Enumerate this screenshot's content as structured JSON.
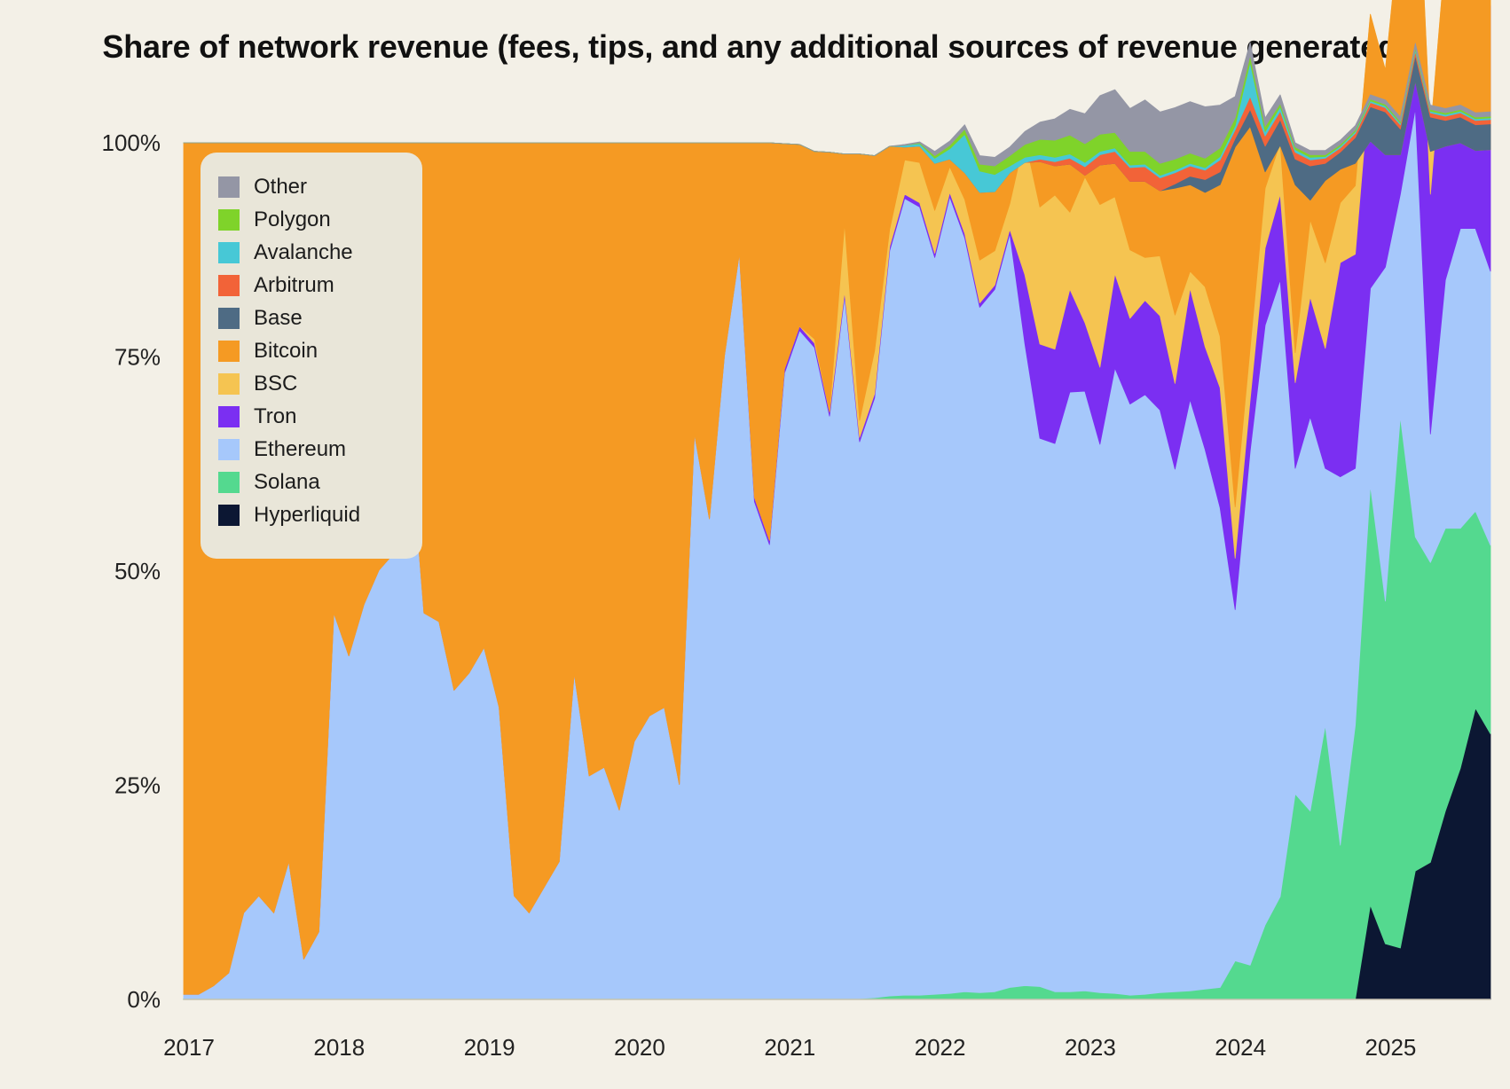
{
  "chart_data": {
    "type": "area",
    "stacked": true,
    "normalized": true,
    "title": "Share of network revenue (fees, tips, and any additional sources of revenue generated)",
    "xlabel": "",
    "ylabel": "",
    "xlim": [
      2017.0,
      2025.7
    ],
    "ylim": [
      0,
      100
    ],
    "x_ticks": [
      "2017",
      "2018",
      "2019",
      "2020",
      "2021",
      "2022",
      "2023",
      "2024",
      "2025"
    ],
    "y_ticks": [
      "0%",
      "25%",
      "50%",
      "75%",
      "100%"
    ],
    "y_tick_values": [
      0,
      25,
      50,
      75,
      100
    ],
    "legend_position": "top-left",
    "x": [
      2017.0,
      2017.1,
      2017.2,
      2017.3,
      2017.4,
      2017.5,
      2017.6,
      2017.7,
      2017.8,
      2017.9,
      2018.0,
      2018.1,
      2018.2,
      2018.3,
      2018.4,
      2018.5,
      2018.6,
      2018.7,
      2018.8,
      2018.9,
      2019.0,
      2019.1,
      2019.2,
      2019.3,
      2019.4,
      2019.5,
      2019.6,
      2019.7,
      2019.8,
      2019.9,
      2020.0,
      2020.1,
      2020.2,
      2020.3,
      2020.4,
      2020.5,
      2020.6,
      2020.7,
      2020.8,
      2020.9,
      2021.0,
      2021.1,
      2021.2,
      2021.3,
      2021.4,
      2021.5,
      2021.6,
      2021.7,
      2021.8,
      2021.9,
      2022.0,
      2022.1,
      2022.2,
      2022.3,
      2022.4,
      2022.5,
      2022.6,
      2022.7,
      2022.8,
      2022.9,
      2023.0,
      2023.1,
      2023.2,
      2023.3,
      2023.4,
      2023.5,
      2023.6,
      2023.7,
      2023.8,
      2023.9,
      2024.0,
      2024.1,
      2024.2,
      2024.3,
      2024.4,
      2024.5,
      2024.6,
      2024.7,
      2024.8,
      2024.9,
      2025.0,
      2025.1,
      2025.2,
      2025.3,
      2025.4,
      2025.5,
      2025.6,
      2025.7
    ],
    "series": [
      {
        "name": "Hyperliquid",
        "color": "#0c1733",
        "values": [
          0,
          0,
          0,
          0,
          0,
          0,
          0,
          0,
          0,
          0,
          0,
          0,
          0,
          0,
          0,
          0,
          0,
          0,
          0,
          0,
          0,
          0,
          0,
          0,
          0,
          0,
          0,
          0,
          0,
          0,
          0,
          0,
          0,
          0,
          0,
          0,
          0,
          0,
          0,
          0,
          0,
          0,
          0,
          0,
          0,
          0,
          0,
          0,
          0,
          0,
          0,
          0,
          0,
          0,
          0,
          0,
          0,
          0,
          0,
          0,
          0,
          0,
          0,
          0,
          0,
          0,
          0,
          0,
          0,
          0,
          0,
          0,
          0,
          0,
          0,
          0,
          0,
          0,
          0,
          11,
          6.5,
          6,
          15,
          16,
          22,
          27,
          34,
          31
        ]
      },
      {
        "name": "Solana",
        "color": "#54d98f",
        "values": [
          0.1,
          0.1,
          0.1,
          0.1,
          0.1,
          0.1,
          0.1,
          0.1,
          0.1,
          0.1,
          0.1,
          0.1,
          0.1,
          0.1,
          0.1,
          0.1,
          0.1,
          0.1,
          0.1,
          0.1,
          0.1,
          0.1,
          0.1,
          0.1,
          0.1,
          0.1,
          0.1,
          0.1,
          0.1,
          0.1,
          0.1,
          0.1,
          0.1,
          0.1,
          0.1,
          0.1,
          0.1,
          0.1,
          0.1,
          0.1,
          0.1,
          0.1,
          0.1,
          0.1,
          0.1,
          0.1,
          0.2,
          0.4,
          0.5,
          0.5,
          0.6,
          0.7,
          0.9,
          0.8,
          0.9,
          1.4,
          1.6,
          1.5,
          0.9,
          0.9,
          1.0,
          0.8,
          0.7,
          0.5,
          0.6,
          0.8,
          0.9,
          1.0,
          1.2,
          1.4,
          4.5,
          4,
          8.7,
          12,
          24,
          22,
          32,
          18,
          32,
          49,
          40,
          62,
          39,
          35,
          33,
          28,
          23,
          22
        ]
      },
      {
        "name": "Ethereum",
        "color": "#a6c8fb",
        "values": [
          0.5,
          0.5,
          1.5,
          3,
          10,
          12,
          10,
          16,
          4.6,
          7.8,
          45,
          40,
          46,
          50,
          52,
          67,
          45,
          44,
          36,
          38,
          41,
          34,
          12,
          10,
          13,
          16,
          38,
          26,
          27,
          22,
          30,
          33,
          34,
          25,
          66,
          56,
          75,
          87,
          58,
          53,
          73,
          78,
          76,
          68,
          82,
          65,
          70,
          87,
          93,
          92,
          86,
          93,
          88,
          80,
          82,
          88,
          75,
          64,
          64,
          70,
          70,
          64,
          73,
          69,
          70,
          68,
          61,
          69,
          63,
          56,
          41,
          60,
          70,
          72,
          38,
          46,
          30,
          43,
          30,
          23,
          39,
          26,
          50,
          15,
          29,
          35,
          33,
          32
        ]
      },
      {
        "name": "Tron",
        "color": "#7b2ff2",
        "values": [
          0,
          0,
          0,
          0,
          0,
          0,
          0,
          0,
          0,
          0,
          0,
          0,
          0,
          0,
          0,
          0,
          0,
          0,
          0,
          0,
          0,
          0,
          0,
          0,
          0,
          0,
          0,
          0,
          0,
          0,
          0,
          0,
          0,
          0,
          0,
          0,
          0,
          0,
          0.5,
          0.5,
          0.5,
          0.5,
          0.5,
          0.5,
          0.5,
          0.5,
          0.5,
          0.5,
          0.5,
          0.5,
          0.5,
          0.5,
          0.5,
          0.5,
          0.5,
          0.5,
          8,
          11,
          11,
          12,
          8,
          9,
          11,
          10,
          11,
          11,
          10,
          13,
          12,
          14,
          6,
          6,
          9,
          10,
          10,
          14,
          14,
          25,
          25,
          25,
          16,
          25,
          28,
          28,
          31,
          30,
          30,
          31
        ]
      },
      {
        "name": "BSC",
        "color": "#f5c451",
        "values": [
          0,
          0,
          0,
          0,
          0,
          0,
          0,
          0,
          0,
          0,
          0,
          0,
          0,
          0,
          0,
          0,
          0,
          0,
          0,
          0,
          0,
          0,
          0,
          0,
          0,
          0,
          0,
          0,
          0,
          0,
          0,
          0,
          0,
          0,
          0,
          0,
          0,
          0,
          0,
          0,
          0,
          0,
          0.5,
          0,
          8,
          2,
          5,
          2,
          4,
          4.7,
          5,
          3,
          4,
          5,
          4,
          3,
          16,
          16,
          18,
          9,
          17,
          19,
          9,
          8,
          5,
          7,
          8,
          2,
          7,
          6,
          6,
          6,
          7,
          6,
          3.5,
          9,
          10,
          7,
          8,
          7,
          7,
          7,
          7,
          7,
          7,
          7,
          7,
          7
        ]
      },
      {
        "name": "Bitcoin",
        "color": "#f59a23",
        "values": [
          99.4,
          99.4,
          98.4,
          96.9,
          89.9,
          87.9,
          89.9,
          83.9,
          95.3,
          92.1,
          54.9,
          59.9,
          53.9,
          49.9,
          47.9,
          32.9,
          54.9,
          55.9,
          63.9,
          61.9,
          58.9,
          65.9,
          87.9,
          89.9,
          86.9,
          83.9,
          61.9,
          73.9,
          72.9,
          77.9,
          69.9,
          66.9,
          65.9,
          74.9,
          33.9,
          43.9,
          24.9,
          12.9,
          41.4,
          46.4,
          26.3,
          21.2,
          21.9,
          30.3,
          8.1,
          31.1,
          22.8,
          9.7,
          1.5,
          1.9,
          5.5,
          0.9,
          3.1,
          7.9,
          6.9,
          3.6,
          -2.9,
          5.3,
          3.4,
          5.6,
          0.2,
          4.6,
          3.9,
          8.0,
          8.9,
          7.6,
          14.8,
          10.1,
          11.0,
          17.7,
          42.0,
          25.9,
          1.9,
          -0.3,
          19.6,
          2.3,
          9.6,
          3.9,
          2.6,
          -14.8,
          -9.9,
          -27.4,
          -31.8,
          -2.0,
          -22.4,
          -27.0,
          -27.9,
          -23.8
        ]
      },
      {
        "name": "Base",
        "color": "#4e6b84",
        "values": [
          0,
          0,
          0,
          0,
          0,
          0,
          0,
          0,
          0,
          0,
          0,
          0,
          0,
          0,
          0,
          0,
          0,
          0,
          0,
          0,
          0,
          0,
          0,
          0,
          0,
          0,
          0,
          0,
          0,
          0,
          0,
          0,
          0,
          0,
          0,
          0,
          0,
          0,
          0,
          0,
          0,
          0,
          0,
          0,
          0,
          0,
          0,
          0,
          0,
          0,
          0,
          0,
          0,
          0,
          0,
          0,
          0,
          0,
          0,
          0,
          0,
          0,
          0,
          0,
          0,
          0,
          0.5,
          1,
          1.5,
          1.5,
          1,
          2,
          3,
          3,
          3,
          4,
          2,
          2,
          3,
          4,
          5,
          3,
          3,
          4,
          3,
          3,
          3,
          3
        ]
      },
      {
        "name": "Arbitrum",
        "color": "#f26338",
        "values": [
          0,
          0,
          0,
          0,
          0,
          0,
          0,
          0,
          0,
          0,
          0,
          0,
          0,
          0,
          0,
          0,
          0,
          0,
          0,
          0,
          0,
          0,
          0,
          0,
          0,
          0,
          0,
          0,
          0,
          0,
          0,
          0,
          0,
          0,
          0,
          0,
          0,
          0,
          0,
          0,
          0,
          0,
          0,
          0,
          0,
          0,
          0,
          0,
          0,
          0,
          0,
          0,
          0,
          0,
          0,
          0,
          0,
          0.3,
          0.5,
          0.7,
          1,
          1.2,
          1.4,
          1.6,
          1.7,
          1.5,
          1.3,
          1.2,
          1.1,
          1.4,
          1,
          1.5,
          1.2,
          1,
          0.8,
          0.7,
          0.6,
          0.5,
          0.5,
          0.5,
          0.5,
          0.5,
          0.5,
          0.5,
          0.5,
          0.5,
          0.5,
          0.5
        ]
      },
      {
        "name": "Avalanche",
        "color": "#47c8d6",
        "values": [
          0,
          0,
          0,
          0,
          0,
          0,
          0,
          0,
          0,
          0,
          0,
          0,
          0,
          0,
          0,
          0,
          0,
          0,
          0,
          0,
          0,
          0,
          0,
          0,
          0,
          0,
          0,
          0,
          0,
          0,
          0,
          0,
          0,
          0,
          0,
          0,
          0,
          0,
          0,
          0,
          0,
          0,
          0,
          0,
          0,
          0,
          0,
          0,
          0.2,
          0.3,
          0.6,
          1.2,
          4.5,
          2.5,
          2,
          0.8,
          0.6,
          0.5,
          0.5,
          0.5,
          0.5,
          0.4,
          0.4,
          0.3,
          0.3,
          0.3,
          0.3,
          0.3,
          0.3,
          0.4,
          0.5,
          4,
          0.5,
          0.5,
          0.3,
          0.3,
          0.2,
          0.2,
          0.2,
          0.2,
          0.2,
          0.2,
          0.2,
          0.2,
          0.2,
          0.2,
          0.2,
          0.2
        ]
      },
      {
        "name": "Polygon",
        "color": "#7fd32a",
        "values": [
          0,
          0,
          0,
          0,
          0,
          0,
          0,
          0,
          0,
          0,
          0,
          0,
          0,
          0,
          0,
          0,
          0,
          0,
          0,
          0,
          0,
          0,
          0,
          0,
          0,
          0,
          0,
          0,
          0,
          0,
          0,
          0,
          0,
          0,
          0,
          0,
          0,
          0,
          0,
          0,
          0,
          0,
          0,
          0,
          0,
          0,
          0,
          0,
          0,
          0.1,
          0.3,
          0.4,
          0.6,
          0.8,
          1,
          1.2,
          1.5,
          1.8,
          2,
          2.2,
          2.2,
          2,
          1.8,
          1.6,
          1.5,
          1.4,
          1.3,
          1.2,
          1.1,
          1,
          0.9,
          0.8,
          0.6,
          0.4,
          0.3,
          0.3,
          0.2,
          0.2,
          0.2,
          0.2,
          0.2,
          0.2,
          0.2,
          0.2,
          0.2,
          0.2,
          0.2,
          0.2
        ]
      },
      {
        "name": "Other",
        "color": "#9496a5",
        "values": [
          0,
          0,
          0,
          0,
          0,
          0,
          0,
          0,
          0,
          0,
          0,
          0,
          0,
          0,
          0,
          0,
          0,
          0,
          0,
          0,
          0,
          0,
          0,
          0,
          0,
          0,
          0,
          0,
          0,
          0,
          0,
          0,
          0,
          0,
          0,
          0,
          0,
          0,
          0,
          0,
          0,
          0,
          0,
          0,
          0,
          0,
          0,
          0,
          0.1,
          0.1,
          0.5,
          0.5,
          0.5,
          1,
          1,
          1,
          1.5,
          2,
          2.5,
          3,
          3.5,
          4.5,
          5,
          5,
          6,
          6,
          6,
          6,
          6,
          5,
          2.5,
          1.5,
          1,
          1,
          0.5,
          0.5,
          0.5,
          0.5,
          0.5,
          0.5,
          0.5,
          0.5,
          0.5,
          0.5,
          0.5,
          0.5,
          0.5,
          0.5
        ]
      }
    ]
  }
}
